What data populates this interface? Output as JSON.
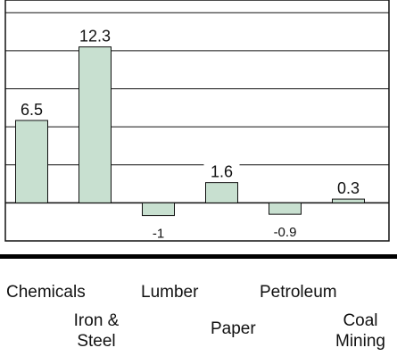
{
  "chart_data": {
    "type": "bar",
    "title": "",
    "xlabel": "",
    "ylabel": "",
    "categories": [
      "Chemicals",
      "Iron & Steel",
      "Lumber",
      "Paper",
      "Petroleum",
      "Coal Mining"
    ],
    "values": [
      6.5,
      12.3,
      -1,
      1.6,
      -0.9,
      0.3
    ],
    "data_labels": [
      "6.5",
      "12.3",
      "-1",
      "1.6",
      "-0.9",
      "0.3"
    ],
    "ylim": [
      -3,
      16
    ],
    "gridline_step": 3,
    "grid": true,
    "legend": "none",
    "colors": {
      "bar_fill": "#c8e0d0",
      "bar_stroke": "#111111",
      "grid": "#111111",
      "band": "#000000"
    }
  }
}
